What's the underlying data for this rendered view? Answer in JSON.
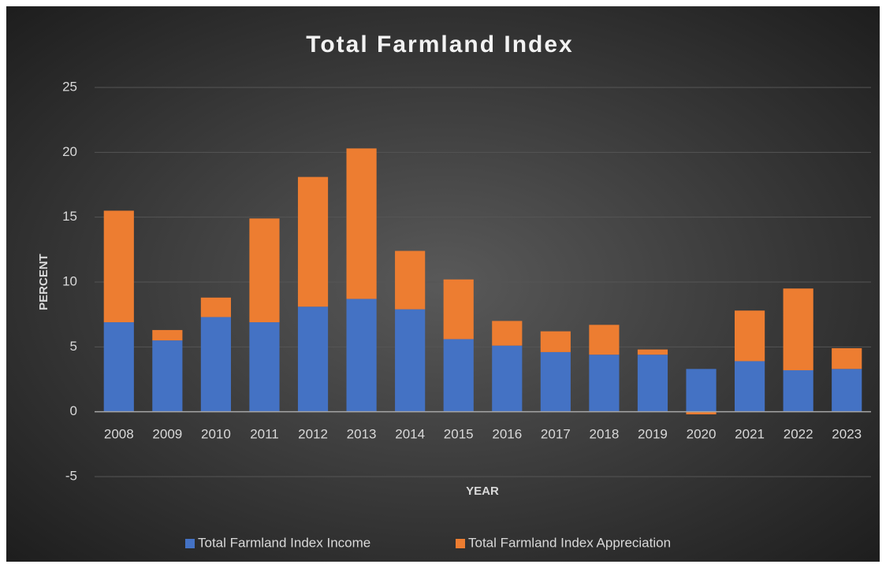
{
  "chart_data": {
    "type": "stacked_bar",
    "title": "Total Farmland Index",
    "x_label": "YEAR",
    "y_label": "PERCENT",
    "categories": [
      "2008",
      "2009",
      "2010",
      "2011",
      "2012",
      "2013",
      "2014",
      "2015",
      "2016",
      "2017",
      "2018",
      "2019",
      "2020",
      "2021",
      "2022",
      "2023"
    ],
    "series": [
      {
        "name": "Total Farmland Index Income",
        "color": "#4472c4",
        "values": [
          6.9,
          5.5,
          7.3,
          6.9,
          8.1,
          8.7,
          7.9,
          5.6,
          5.1,
          4.6,
          4.4,
          4.4,
          3.3,
          3.9,
          3.2,
          3.3
        ]
      },
      {
        "name": "Total Farmland Index Appreciation",
        "color": "#ed7d31",
        "values": [
          8.6,
          0.8,
          1.5,
          8.0,
          10.0,
          11.6,
          4.5,
          4.6,
          1.9,
          1.6,
          2.3,
          0.4,
          -0.2,
          3.9,
          6.3,
          1.6
        ]
      }
    ],
    "ylim": [
      -5,
      25
    ],
    "yticks": [
      -5,
      0,
      5,
      10,
      15,
      20,
      25
    ],
    "grid": true,
    "legend": "bottom"
  }
}
